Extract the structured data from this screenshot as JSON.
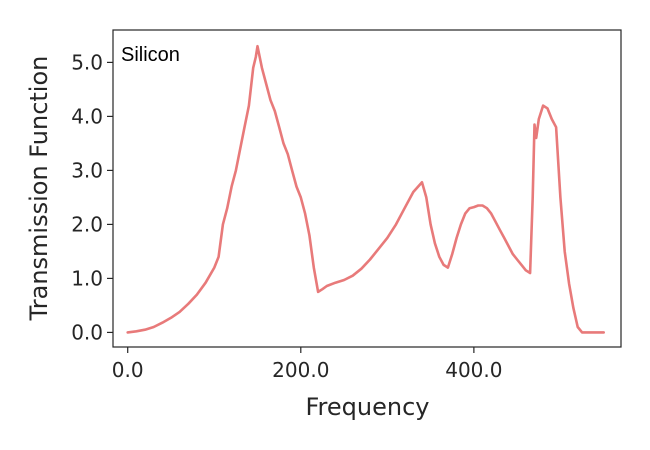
{
  "chart_data": {
    "type": "line",
    "title": "",
    "xlabel": "Frequency",
    "ylabel": "Transmission Function",
    "annotation": "Silicon",
    "xlim": [
      -17,
      570
    ],
    "ylim": [
      -0.27,
      5.6
    ],
    "x_ticks": [
      0,
      200,
      400
    ],
    "x_tick_labels": [
      "0.0",
      "200.0",
      "400.0"
    ],
    "y_ticks": [
      0,
      1,
      2,
      3,
      4,
      5
    ],
    "y_tick_labels": [
      "0.0",
      "1.0",
      "2.0",
      "3.0",
      "4.0",
      "5.0"
    ],
    "grid": false,
    "line_color": "#e87a7a",
    "series": [
      {
        "x": [
          0,
          10,
          20,
          30,
          40,
          50,
          60,
          70,
          80,
          90,
          100,
          105,
          110,
          115,
          120,
          125,
          130,
          135,
          140,
          145,
          148,
          150,
          155,
          160,
          165,
          170,
          175,
          180,
          185,
          190,
          195,
          200,
          205,
          210,
          215,
          220,
          225,
          230,
          240,
          250,
          260,
          270,
          280,
          290,
          300,
          310,
          320,
          330,
          340,
          345,
          350,
          355,
          360,
          365,
          370,
          375,
          380,
          385,
          390,
          395,
          400,
          405,
          410,
          415,
          420,
          425,
          430,
          435,
          440,
          445,
          450,
          455,
          460,
          465,
          468,
          470,
          472,
          475,
          480,
          485,
          490,
          495,
          500,
          505,
          510,
          515,
          520,
          525,
          530,
          540,
          550
        ],
        "y": [
          0.0,
          0.02,
          0.05,
          0.1,
          0.18,
          0.27,
          0.38,
          0.53,
          0.7,
          0.92,
          1.2,
          1.4,
          2.0,
          2.3,
          2.7,
          3.0,
          3.4,
          3.8,
          4.2,
          4.9,
          5.1,
          5.3,
          4.9,
          4.6,
          4.3,
          4.1,
          3.8,
          3.5,
          3.3,
          3.0,
          2.7,
          2.5,
          2.2,
          1.8,
          1.2,
          0.75,
          0.8,
          0.86,
          0.92,
          0.97,
          1.05,
          1.18,
          1.35,
          1.55,
          1.75,
          2.0,
          2.3,
          2.6,
          2.78,
          2.5,
          2.0,
          1.65,
          1.4,
          1.25,
          1.2,
          1.45,
          1.75,
          2.0,
          2.2,
          2.3,
          2.32,
          2.35,
          2.35,
          2.3,
          2.2,
          2.05,
          1.9,
          1.75,
          1.6,
          1.45,
          1.35,
          1.25,
          1.15,
          1.1,
          2.5,
          3.85,
          3.6,
          3.95,
          4.2,
          4.15,
          3.95,
          3.8,
          2.5,
          1.5,
          0.9,
          0.45,
          0.1,
          0.0,
          0.0,
          0.0,
          0.0
        ]
      }
    ]
  }
}
